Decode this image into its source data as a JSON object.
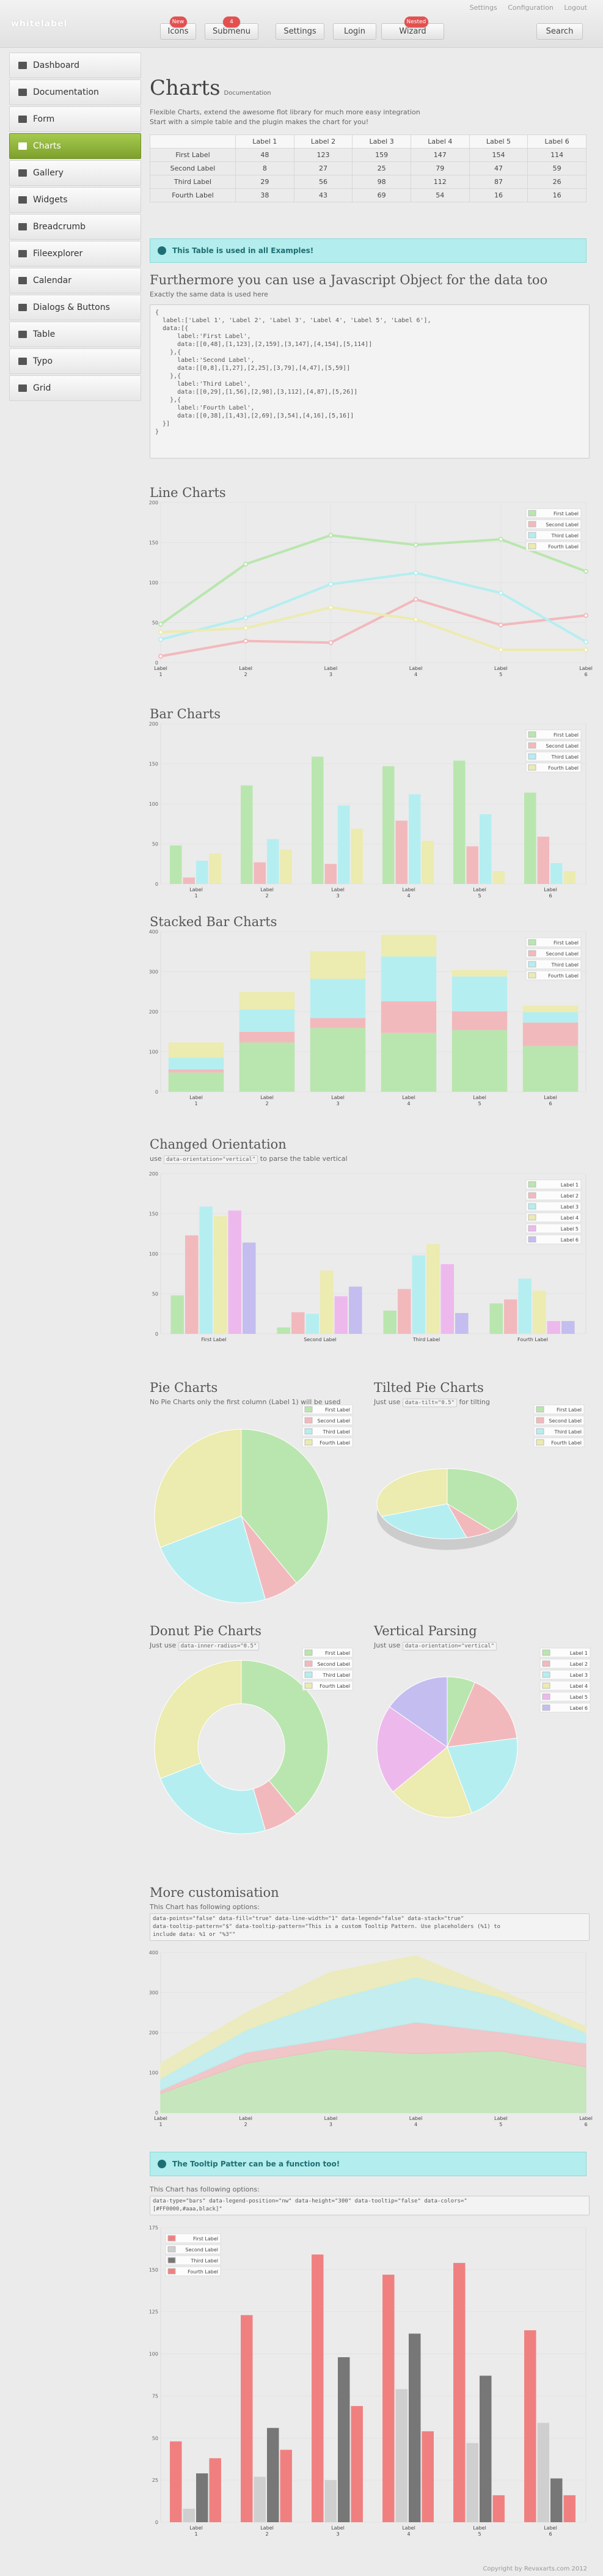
{
  "app": {
    "logo": "whitelabel",
    "top_links": [
      "Settings",
      "Configuration",
      "Logout"
    ],
    "nav": [
      {
        "label": "Icons",
        "badge": "New"
      },
      {
        "label": "Submenu",
        "badge": "4"
      },
      {
        "label": "Settings",
        "badge": ""
      },
      {
        "label": "Login",
        "badge": ""
      },
      {
        "label": "Wizard",
        "badge": "Nested"
      }
    ],
    "search": "Search"
  },
  "sidebar": {
    "items": [
      "Dashboard",
      "Documentation",
      "Form",
      "Charts",
      "Gallery",
      "Widgets",
      "Breadcrumb",
      "Fileexplorer",
      "Calendar",
      "Dialogs & Buttons",
      "Table",
      "Typo",
      "Grid"
    ],
    "active": 3
  },
  "page": {
    "title": "Charts",
    "subtitle": "Documentation",
    "desc1": "Flexible Charts, extend the awesome flot library for much more easy integration",
    "desc2": "Start with a simple table and the plugin makes the chart for you!"
  },
  "table": {
    "columns": [
      "",
      "Label 1",
      "Label 2",
      "Label 3",
      "Label 4",
      "Label 5",
      "Label 6"
    ],
    "rows": [
      {
        "label": "First Label",
        "values": [
          "48",
          "123",
          "159",
          "147",
          "154",
          "114"
        ]
      },
      {
        "label": "Second Label",
        "values": [
          "8",
          "27",
          "25",
          "79",
          "47",
          "59"
        ]
      },
      {
        "label": "Third Label",
        "values": [
          "29",
          "56",
          "98",
          "112",
          "87",
          "26"
        ]
      },
      {
        "label": "Fourth Label",
        "values": [
          "38",
          "43",
          "69",
          "54",
          "16",
          "16"
        ]
      }
    ]
  },
  "info1": "This Table is used in all Examples!",
  "js": {
    "heading": "Furthermore you can use a Javascript Object for the data too",
    "desc": "Exactly the same data is used here",
    "code": "{\n  label:['Label 1', 'Label 2', 'Label 3', 'Label 4', 'Label 5', 'Label 6'],\n  data:[{\n      label:'First Label',\n      data:[[0,48],[1,123],[2,159],[3,147],[4,154],[5,114]]\n    },{\n      label:'Second Label',\n      data:[[0,8],[1,27],[2,25],[3,79],[4,47],[5,59]]\n    },{\n      label:'Third Label',\n      data:[[0,29],[1,56],[2,98],[3,112],[4,87],[5,26]]\n    },{\n      label:'Fourth Label',\n      data:[[0,38],[1,43],[2,69],[3,54],[4,16],[5,16]]\n  }]\n}"
  },
  "sections": {
    "line": "Line Charts",
    "bar": "Bar Charts",
    "stacked": "Stacked Bar Charts",
    "orient": "Changed Orientation",
    "orient_pre": "use",
    "orient_code": "data-orientation=\"vertical\"",
    "orient_post": "to parse the table vertical",
    "pie": "Pie Charts",
    "pie_desc": "No Pie Charts only the first column (Label 1) will be used",
    "tilted": "Tilted Pie Charts",
    "tilted_pre": "Just use",
    "tilted_code": "data-tilt=\"0.5\"",
    "tilted_post": "for tilting",
    "donut": "Donut Pie Charts",
    "donut_pre": "Just use",
    "donut_code": "data-inner-radius=\"0.5\"",
    "vpars": "Vertical Parsing",
    "vpars_pre": "Just use",
    "vpars_code": "data-orientation=\"vertical\"",
    "more": "More customisation",
    "more_desc": "This Chart has following options:",
    "more_code": "data-points=\"false\" data-fill=\"true\" data-line-width=\"1\" data-legend=\"false\" data-stack=\"true\"\ndata-tooltip-pattern=\"$\" data-tooltip-pattern=\"This is a custom Tooltip Pattern. Use placeholders (%1) to\ninclude data: %1 or \"%3\"\"",
    "info2": "The Tooltip Patter can be a function too!",
    "last_desc": "This Chart has following options:",
    "last_code": "data-type=\"bars\" data-legend-position=\"nw\" data-height=\"300\" data-tooltip=\"false\" data-colors=\"\n[#FF0000,#aaa,black]\""
  },
  "footer": "Copyright by Revaxarts.com 2012",
  "chart_data": [
    {
      "type": "line",
      "categories": [
        "Label 1",
        "Label 2",
        "Label 3",
        "Label 4",
        "Label 5",
        "Label 6"
      ],
      "ylim": [
        0,
        200
      ],
      "yticks": [
        0,
        50,
        100,
        150,
        200
      ],
      "series": [
        {
          "name": "First Label",
          "values": [
            48,
            123,
            159,
            147,
            154,
            114
          ]
        },
        {
          "name": "Second Label",
          "values": [
            8,
            27,
            25,
            79,
            47,
            59
          ]
        },
        {
          "name": "Third Label",
          "values": [
            29,
            56,
            98,
            112,
            87,
            26
          ]
        },
        {
          "name": "Fourth Label",
          "values": [
            38,
            43,
            69,
            54,
            16,
            16
          ]
        }
      ]
    },
    {
      "type": "bar",
      "categories": [
        "Label 1",
        "Label 2",
        "Label 3",
        "Label 4",
        "Label 5",
        "Label 6"
      ],
      "ylim": [
        0,
        200
      ],
      "yticks": [
        0,
        50,
        100,
        150,
        200
      ],
      "series": [
        {
          "name": "First Label",
          "values": [
            48,
            123,
            159,
            147,
            154,
            114
          ]
        },
        {
          "name": "Second Label",
          "values": [
            8,
            27,
            25,
            79,
            47,
            59
          ]
        },
        {
          "name": "Third Label",
          "values": [
            29,
            56,
            98,
            112,
            87,
            26
          ]
        },
        {
          "name": "Fourth Label",
          "values": [
            38,
            43,
            69,
            54,
            16,
            16
          ]
        }
      ]
    },
    {
      "type": "bar",
      "stacked": true,
      "categories": [
        "Label 1",
        "Label 2",
        "Label 3",
        "Label 4",
        "Label 5",
        "Label 6"
      ],
      "ylim": [
        0,
        400
      ],
      "yticks": [
        0,
        100,
        200,
        300,
        400
      ],
      "series": [
        {
          "name": "First Label",
          "values": [
            48,
            123,
            159,
            147,
            154,
            114
          ]
        },
        {
          "name": "Second Label",
          "values": [
            8,
            27,
            25,
            79,
            47,
            59
          ]
        },
        {
          "name": "Third Label",
          "values": [
            29,
            56,
            98,
            112,
            87,
            26
          ]
        },
        {
          "name": "Fourth Label",
          "values": [
            38,
            43,
            69,
            54,
            16,
            16
          ]
        }
      ]
    },
    {
      "type": "bar",
      "categories": [
        "First Label",
        "Second Label",
        "Third Label",
        "Fourth Label"
      ],
      "ylim": [
        0,
        200
      ],
      "yticks": [
        0,
        50,
        100,
        150,
        200
      ],
      "series": [
        {
          "name": "Label 1",
          "values": [
            48,
            8,
            29,
            38
          ]
        },
        {
          "name": "Label 2",
          "values": [
            123,
            27,
            56,
            43
          ]
        },
        {
          "name": "Label 3",
          "values": [
            159,
            25,
            98,
            69
          ]
        },
        {
          "name": "Label 4",
          "values": [
            147,
            79,
            112,
            54
          ]
        },
        {
          "name": "Label 5",
          "values": [
            154,
            47,
            87,
            16
          ]
        },
        {
          "name": "Label 6",
          "values": [
            114,
            59,
            26,
            16
          ]
        }
      ]
    },
    {
      "type": "pie",
      "categories": [
        "First Label",
        "Second Label",
        "Third Label",
        "Fourth Label"
      ],
      "values": [
        48,
        8,
        29,
        38
      ]
    },
    {
      "type": "pie",
      "tilt": 0.5,
      "categories": [
        "First Label",
        "Second Label",
        "Third Label",
        "Fourth Label"
      ],
      "values": [
        48,
        8,
        29,
        38
      ]
    },
    {
      "type": "pie",
      "inner_radius": 0.5,
      "categories": [
        "First Label",
        "Second Label",
        "Third Label",
        "Fourth Label"
      ],
      "values": [
        48,
        8,
        29,
        38
      ]
    },
    {
      "type": "pie",
      "categories": [
        "Label 1",
        "Label 2",
        "Label 3",
        "Label 4",
        "Label 5",
        "Label 6"
      ],
      "values": [
        48,
        123,
        159,
        147,
        154,
        114
      ]
    },
    {
      "type": "area",
      "stacked": true,
      "categories": [
        "Label 1",
        "Label 2",
        "Label 3",
        "Label 4",
        "Label 5",
        "Label 6"
      ],
      "ylim": [
        0,
        400
      ],
      "yticks": [
        0,
        100,
        200,
        300,
        400
      ],
      "series": [
        {
          "name": "First Label",
          "values": [
            48,
            123,
            159,
            147,
            154,
            114
          ]
        },
        {
          "name": "Second Label",
          "values": [
            8,
            27,
            25,
            79,
            47,
            59
          ]
        },
        {
          "name": "Third Label",
          "values": [
            29,
            56,
            98,
            112,
            87,
            26
          ]
        },
        {
          "name": "Fourth Label",
          "values": [
            38,
            43,
            69,
            54,
            16,
            16
          ]
        }
      ]
    },
    {
      "type": "bar",
      "categories": [
        "Label 1",
        "Label 2",
        "Label 3",
        "Label 4",
        "Label 5",
        "Label 6"
      ],
      "ylim": [
        0,
        175
      ],
      "yticks": [
        0,
        25,
        50,
        75,
        100,
        125,
        150,
        175
      ],
      "series": [
        {
          "name": "First Label",
          "values": [
            48,
            123,
            159,
            147,
            154,
            114
          ]
        },
        {
          "name": "Second Label",
          "values": [
            8,
            27,
            25,
            79,
            47,
            59
          ]
        },
        {
          "name": "Third Label",
          "values": [
            29,
            56,
            98,
            112,
            87,
            26
          ]
        },
        {
          "name": "Fourth Label",
          "values": [
            38,
            43,
            69,
            54,
            16,
            16
          ]
        }
      ]
    }
  ],
  "colors": {
    "pastel": [
      "#b9e6ae",
      "#f2b9bd",
      "#b5eef0",
      "#ecebb0"
    ],
    "pastel6": [
      "#b9e6ae",
      "#f2b9bd",
      "#b5eef0",
      "#ecebb0",
      "#edb9ec",
      "#c4bdf0"
    ],
    "last": [
      "#f08080",
      "#cfcfcf",
      "#777777",
      "#f08080"
    ],
    "accent": "#8db43c",
    "info": "#b3eded"
  }
}
